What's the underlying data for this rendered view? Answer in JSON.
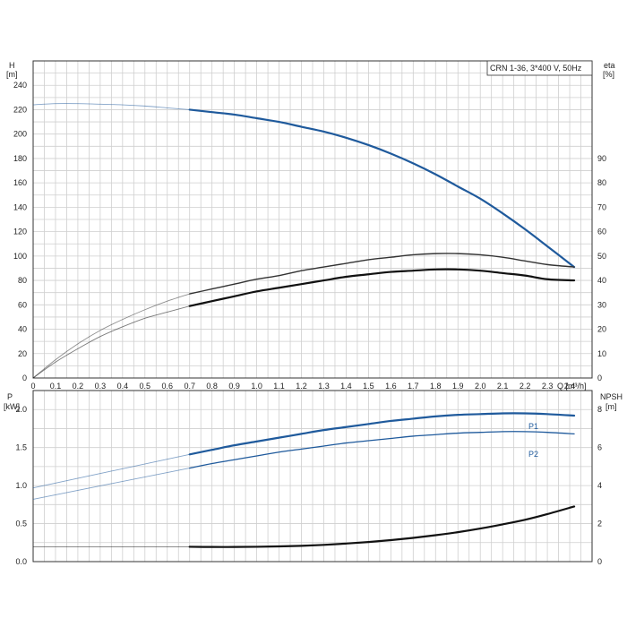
{
  "chart_data": [
    {
      "type": "line",
      "panel": "top",
      "legend": "CRN 1-36, 3*400 V, 50Hz",
      "legend_position": "top-right",
      "xlabel": "Q [m³/h]",
      "x_ticks": [
        "0",
        "0.1",
        "0.2",
        "0.3",
        "0.4",
        "0.5",
        "0.6",
        "0.7",
        "0.8",
        "0.9",
        "1.0",
        "1.1",
        "1.2",
        "1.3",
        "1.4",
        "1.5",
        "1.6",
        "1.7",
        "1.8",
        "1.9",
        "2.0",
        "2.1",
        "2.2",
        "2.3",
        "2.4"
      ],
      "xlim": [
        0,
        2.5
      ],
      "grid": true,
      "ylabel_left_line1": "H",
      "ylabel_left_line2": "[m]",
      "y_left_ticks": [
        "0",
        "20",
        "40",
        "60",
        "80",
        "100",
        "120",
        "140",
        "160",
        "180",
        "200",
        "220",
        "240"
      ],
      "ylim_left": [
        0,
        260
      ],
      "ylabel_right_line1": "eta",
      "ylabel_right_line2": "[%]",
      "y_right_ticks": [
        "0",
        "10",
        "20",
        "30",
        "40",
        "50",
        "60",
        "70",
        "80",
        "90"
      ],
      "ylim_right": [
        0,
        130
      ],
      "series": [
        {
          "axis": "left",
          "color": "#1f5a9c",
          "width": 2.2,
          "points": [
            [
              0.7,
              220
            ],
            [
              0.8,
              218
            ],
            [
              0.9,
              216
            ],
            [
              1.0,
              213
            ],
            [
              1.1,
              210
            ],
            [
              1.2,
              206
            ],
            [
              1.3,
              202
            ],
            [
              1.4,
              197
            ],
            [
              1.5,
              191
            ],
            [
              1.6,
              184
            ],
            [
              1.7,
              176
            ],
            [
              1.8,
              167
            ],
            [
              1.9,
              157
            ],
            [
              2.0,
              147
            ],
            [
              2.1,
              135
            ],
            [
              2.2,
              122
            ],
            [
              2.3,
              108
            ],
            [
              2.42,
              91
            ]
          ],
          "extension": [
            [
              0,
              224
            ],
            [
              0.1,
              225
            ],
            [
              0.2,
              225
            ],
            [
              0.3,
              224.5
            ],
            [
              0.4,
              224
            ],
            [
              0.5,
              223
            ],
            [
              0.6,
              221.5
            ],
            [
              0.7,
              220
            ]
          ]
        },
        {
          "axis": "right",
          "color": "#333333",
          "width": 1.4,
          "points": [
            [
              0.7,
              34.5
            ],
            [
              0.8,
              36.5
            ],
            [
              0.9,
              38.5
            ],
            [
              1.0,
              40.5
            ],
            [
              1.1,
              42
            ],
            [
              1.2,
              44
            ],
            [
              1.3,
              45.5
            ],
            [
              1.4,
              47
            ],
            [
              1.5,
              48.5
            ],
            [
              1.6,
              49.5
            ],
            [
              1.7,
              50.5
            ],
            [
              1.8,
              51
            ],
            [
              1.9,
              51
            ],
            [
              2.0,
              50.5
            ],
            [
              2.1,
              49.5
            ],
            [
              2.2,
              48
            ],
            [
              2.3,
              46.5
            ],
            [
              2.42,
              45.5
            ]
          ],
          "extension": [
            [
              0,
              0
            ],
            [
              0.1,
              7.5
            ],
            [
              0.2,
              14
            ],
            [
              0.3,
              19.5
            ],
            [
              0.4,
              24
            ],
            [
              0.5,
              28
            ],
            [
              0.6,
              31.5
            ],
            [
              0.7,
              34.5
            ]
          ]
        },
        {
          "axis": "right",
          "color": "#111111",
          "width": 2.2,
          "points": [
            [
              0.7,
              29.5
            ],
            [
              0.8,
              31.5
            ],
            [
              0.9,
              33.5
            ],
            [
              1.0,
              35.5
            ],
            [
              1.1,
              37
            ],
            [
              1.2,
              38.5
            ],
            [
              1.3,
              40
            ],
            [
              1.4,
              41.5
            ],
            [
              1.5,
              42.5
            ],
            [
              1.6,
              43.5
            ],
            [
              1.7,
              44
            ],
            [
              1.8,
              44.5
            ],
            [
              1.9,
              44.5
            ],
            [
              2.0,
              44
            ],
            [
              2.1,
              43
            ],
            [
              2.2,
              42
            ],
            [
              2.3,
              40.5
            ],
            [
              2.42,
              40
            ]
          ],
          "extension": [
            [
              0,
              0
            ],
            [
              0.1,
              6.5
            ],
            [
              0.2,
              12
            ],
            [
              0.3,
              17
            ],
            [
              0.4,
              21
            ],
            [
              0.5,
              24.5
            ],
            [
              0.6,
              27
            ],
            [
              0.7,
              29.5
            ]
          ]
        }
      ]
    },
    {
      "type": "line",
      "panel": "bottom",
      "ylabel_left_line1": "P",
      "ylabel_left_line2": "[kW]",
      "y_left_ticks": [
        "0.0",
        "0.5",
        "1.0",
        "1.5",
        "2.0"
      ],
      "ylim_left": [
        0,
        2.25
      ],
      "ylabel_right_line1": "NPSH",
      "ylabel_right_line2": "[m]",
      "y_right_ticks": [
        "0",
        "2",
        "4",
        "6",
        "8"
      ],
      "ylim_right": [
        0,
        9
      ],
      "xlim": [
        0,
        2.5
      ],
      "grid": true,
      "series": [
        {
          "name": "P1",
          "axis": "left",
          "color": "#1f5a9c",
          "width": 2.2,
          "points": [
            [
              0.7,
              1.41
            ],
            [
              0.8,
              1.47
            ],
            [
              0.9,
              1.53
            ],
            [
              1.0,
              1.58
            ],
            [
              1.1,
              1.63
            ],
            [
              1.2,
              1.68
            ],
            [
              1.3,
              1.73
            ],
            [
              1.4,
              1.77
            ],
            [
              1.5,
              1.81
            ],
            [
              1.6,
              1.85
            ],
            [
              1.7,
              1.88
            ],
            [
              1.8,
              1.91
            ],
            [
              1.9,
              1.93
            ],
            [
              2.0,
              1.94
            ],
            [
              2.1,
              1.95
            ],
            [
              2.2,
              1.95
            ],
            [
              2.3,
              1.94
            ],
            [
              2.42,
              1.92
            ]
          ],
          "extension": [
            [
              0,
              0.97
            ],
            [
              0.7,
              1.41
            ]
          ]
        },
        {
          "name": "P2",
          "axis": "left",
          "color": "#1f5a9c",
          "width": 1.3,
          "points": [
            [
              0.7,
              1.23
            ],
            [
              0.8,
              1.29
            ],
            [
              0.9,
              1.34
            ],
            [
              1.0,
              1.39
            ],
            [
              1.1,
              1.44
            ],
            [
              1.2,
              1.48
            ],
            [
              1.3,
              1.52
            ],
            [
              1.4,
              1.56
            ],
            [
              1.5,
              1.59
            ],
            [
              1.6,
              1.62
            ],
            [
              1.7,
              1.65
            ],
            [
              1.8,
              1.67
            ],
            [
              1.9,
              1.69
            ],
            [
              2.0,
              1.7
            ],
            [
              2.1,
              1.71
            ],
            [
              2.2,
              1.71
            ],
            [
              2.3,
              1.7
            ],
            [
              2.42,
              1.68
            ]
          ],
          "extension": [
            [
              0,
              0.82
            ],
            [
              0.7,
              1.23
            ]
          ]
        },
        {
          "axis": "right",
          "color": "#111111",
          "width": 2.2,
          "points": [
            [
              0.7,
              0.78
            ],
            [
              0.8,
              0.77
            ],
            [
              0.9,
              0.77
            ],
            [
              1.0,
              0.78
            ],
            [
              1.1,
              0.8
            ],
            [
              1.2,
              0.83
            ],
            [
              1.3,
              0.88
            ],
            [
              1.4,
              0.95
            ],
            [
              1.5,
              1.03
            ],
            [
              1.6,
              1.13
            ],
            [
              1.7,
              1.25
            ],
            [
              1.8,
              1.39
            ],
            [
              1.9,
              1.55
            ],
            [
              2.0,
              1.74
            ],
            [
              2.1,
              1.96
            ],
            [
              2.2,
              2.2
            ],
            [
              2.3,
              2.5
            ],
            [
              2.42,
              2.9
            ]
          ],
          "extension": [
            [
              0,
              0.78
            ],
            [
              0.7,
              0.78
            ]
          ]
        }
      ]
    }
  ]
}
